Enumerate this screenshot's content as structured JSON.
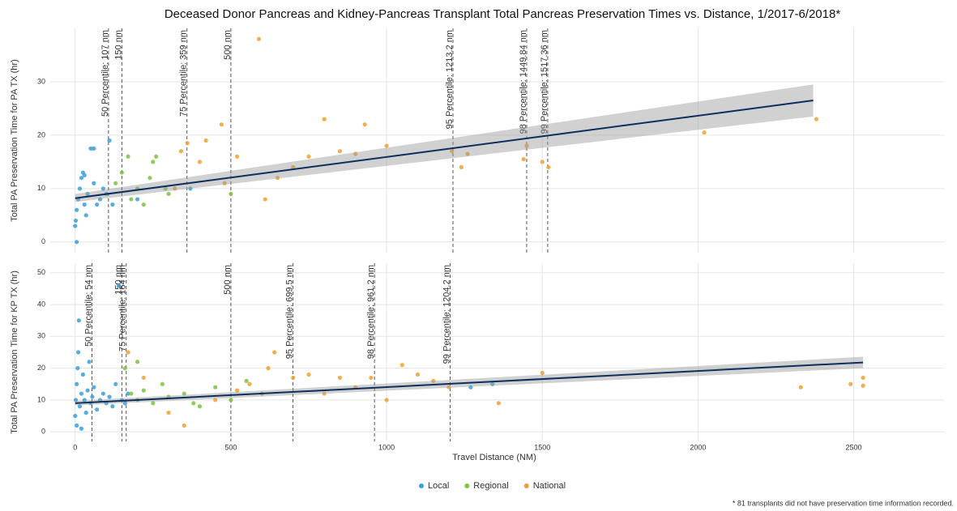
{
  "chart_data": [
    {
      "type": "scatter",
      "title": "Deceased Donor Pancreas and Kidney-Pancreas Transplant Total Pancreas Preservation Times vs. Distance, 1/2017-6/2018*",
      "ylabel": "Total PA Preservation Time for PA TX (hr)",
      "xlim": [
        -80,
        2790
      ],
      "ylim": [
        -2,
        40
      ],
      "xticks": [
        0,
        500,
        1000,
        1500,
        2000,
        2500
      ],
      "yticks": [
        0,
        10,
        20,
        30
      ],
      "grid": true,
      "series": [
        {
          "name": "Local",
          "color": "#3a9fd6",
          "x": [
            0,
            5,
            10,
            15,
            20,
            25,
            30,
            35,
            40,
            50,
            60,
            70,
            80,
            90,
            100,
            110,
            120,
            5,
            2,
            60,
            30,
            370,
            200
          ],
          "values": [
            3,
            6,
            8,
            10,
            12,
            13,
            7,
            5,
            9,
            17.5,
            11,
            7,
            8,
            10,
            9,
            19,
            7,
            0,
            4,
            17.5,
            12.5,
            10,
            8
          ]
        },
        {
          "name": "Regional",
          "color": "#7dc242",
          "x": [
            130,
            150,
            170,
            200,
            220,
            250,
            260,
            290,
            300,
            180,
            500,
            240
          ],
          "values": [
            11,
            13,
            16,
            10,
            7,
            15,
            16,
            10,
            9,
            8,
            9,
            12
          ]
        },
        {
          "name": "National",
          "color": "#f0a030",
          "x": [
            320,
            340,
            360,
            420,
            470,
            480,
            520,
            590,
            610,
            700,
            750,
            800,
            850,
            900,
            930,
            1000,
            1210,
            1240,
            1260,
            1440,
            1450,
            1500,
            1520,
            2020,
            2380,
            400,
            650
          ],
          "values": [
            10,
            17,
            18.5,
            19,
            22,
            11,
            16,
            38,
            8,
            14,
            16,
            23,
            17,
            16.5,
            22,
            18,
            17,
            14,
            16.5,
            15.5,
            18,
            15,
            14,
            20.5,
            23,
            15,
            12
          ]
        }
      ],
      "fit": {
        "color": "#0d2f5e",
        "x": [
          0,
          2370
        ],
        "values": [
          8.2,
          26.5
        ],
        "lower": [
          7.5,
          23.5
        ],
        "upper": [
          9,
          29.5
        ]
      },
      "vlines": [
        {
          "value": 107,
          "label": "50 Percentile: 107 nm"
        },
        {
          "value": 150,
          "label": "150 nm"
        },
        {
          "value": 359,
          "label": "75 Percentile: 359 nm"
        },
        {
          "value": 500,
          "label": "500 nm"
        },
        {
          "value": 1213.2,
          "label": "95 Percentile: 1213.2 nm"
        },
        {
          "value": 1449.84,
          "label": "98 Percentile: 1449.84 nm"
        },
        {
          "value": 1517.36,
          "label": "99 Percentile: 1517.36 nm"
        }
      ]
    },
    {
      "type": "scatter",
      "ylabel": "Total PA Preservation Time for KP TX (hr)",
      "xlabel": "Travel Distance (NM)",
      "xlim": [
        -80,
        2790
      ],
      "ylim": [
        -3,
        53
      ],
      "xticks": [
        0,
        500,
        1000,
        1500,
        2000,
        2500
      ],
      "yticks": [
        0,
        10,
        20,
        30,
        40,
        50
      ],
      "grid": true,
      "series": [
        {
          "name": "Local",
          "color": "#3a9fd6",
          "x": [
            0,
            2,
            5,
            8,
            10,
            12,
            15,
            20,
            25,
            30,
            35,
            40,
            45,
            50,
            55,
            60,
            70,
            80,
            90,
            100,
            110,
            120,
            130,
            140,
            150,
            160,
            170,
            5,
            20,
            1270,
            1340
          ],
          "values": [
            5,
            10,
            15,
            20,
            25,
            35,
            8,
            12,
            18,
            10,
            6,
            13,
            22,
            9,
            11,
            14,
            7,
            10,
            12,
            9,
            11,
            8,
            15,
            46,
            10,
            9,
            12,
            2,
            1,
            14,
            15
          ]
        },
        {
          "name": "Regional",
          "color": "#7dc242",
          "x": [
            180,
            200,
            220,
            250,
            280,
            300,
            350,
            400,
            450,
            500,
            550,
            600,
            160,
            200,
            380
          ],
          "values": [
            12,
            10,
            13,
            9,
            15,
            11,
            12,
            8,
            14,
            10,
            16,
            12,
            20,
            22,
            9
          ]
        },
        {
          "name": "National",
          "color": "#f0a030",
          "x": [
            170,
            220,
            300,
            350,
            450,
            520,
            560,
            620,
            640,
            700,
            750,
            800,
            850,
            900,
            950,
            1000,
            1050,
            1100,
            1150,
            1200,
            1360,
            1500,
            2330,
            2490,
            2530,
            2530
          ],
          "values": [
            25,
            17,
            6,
            2,
            10,
            13,
            15,
            20,
            25,
            17,
            18,
            12,
            17,
            14,
            17,
            10,
            21,
            18,
            16,
            14,
            9,
            18.5,
            14,
            15,
            17,
            14.5
          ]
        }
      ],
      "fit": {
        "color": "#0d2f5e",
        "x": [
          0,
          2530
        ],
        "values": [
          9,
          21.8
        ],
        "lower": [
          8.3,
          20
        ],
        "upper": [
          9.7,
          23.6
        ]
      },
      "vlines": [
        {
          "value": 54,
          "label": "50 Percentile: 54 nm"
        },
        {
          "value": 150,
          "label": "150 nm"
        },
        {
          "value": 164,
          "label": "75 Percentile: 164 nm"
        },
        {
          "value": 500,
          "label": "500 nm"
        },
        {
          "value": 699.5,
          "label": "95 Percentile: 699.5 nm"
        },
        {
          "value": 961.2,
          "label": "98 Percentile: 961.2 nm"
        },
        {
          "value": 1204.2,
          "label": "99 Percentile: 1204.2 nm"
        }
      ],
      "footnote": "* 81 transplants did not have preservation time information recorded."
    }
  ]
}
